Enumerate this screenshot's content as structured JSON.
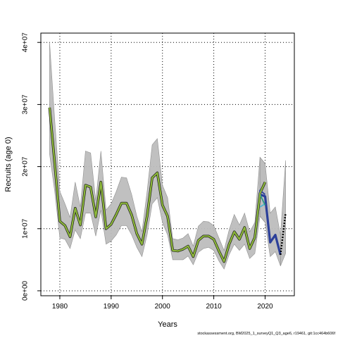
{
  "chart_data": {
    "type": "line",
    "title": "",
    "xlabel": "Years",
    "ylabel": "Recruits (age 0)",
    "xlim": [
      1976.3,
      2025.7
    ],
    "ylim": [
      -800000,
      41500000
    ],
    "xticks": [
      1980,
      1990,
      2000,
      2010,
      2020
    ],
    "xtick_labels": [
      "1980",
      "1990",
      "2000",
      "2010",
      "2020"
    ],
    "yticks": [
      0,
      10000000,
      20000000,
      30000000,
      40000000
    ],
    "ytick_labels": [
      "0e+00",
      "1e+07",
      "2e+07",
      "3e+07",
      "4e+07"
    ],
    "grid": true,
    "grid_style": "dotted",
    "colors": {
      "band": "#bdbdbd",
      "band_edge": "#8c8c8c",
      "line_outline": "#1a1a1a",
      "main_line": "#8db83a",
      "retro_blue": "#2b3f99",
      "retro_teal": "#2c9a86",
      "retro_cyan": "#49b7d3",
      "forecast": "#000000"
    },
    "x": [
      1978,
      1979,
      1980,
      1981,
      1982,
      1983,
      1984,
      1985,
      1986,
      1987,
      1988,
      1989,
      1990,
      1991,
      1992,
      1993,
      1994,
      1995,
      1996,
      1997,
      1998,
      1999,
      2000,
      2001,
      2002,
      2003,
      2004,
      2005,
      2006,
      2007,
      2008,
      2009,
      2010,
      2011,
      2012,
      2013,
      2014,
      2015,
      2016,
      2017,
      2018,
      2019,
      2020
    ],
    "band_upper": [
      40000000,
      27500000,
      16000000,
      14000000,
      11800000,
      17500000,
      13500000,
      22500000,
      22200000,
      14500000,
      22500000,
      13000000,
      14000000,
      16000000,
      18300000,
      18200000,
      15500000,
      12000000,
      9500000,
      16000000,
      23500000,
      24500000,
      17000000,
      15000000,
      8400000,
      8200000,
      8500000,
      9200000,
      7200000,
      10400000,
      11200000,
      11100000,
      10500000,
      8500000,
      6500000,
      9800000,
      12300000,
      10600000,
      12500000,
      9500000,
      11000000,
      21500000,
      20500000
    ],
    "band_lower": [
      22000000,
      16000000,
      8500000,
      8300000,
      6800000,
      9800000,
      8400000,
      12500000,
      12500000,
      8800000,
      13000000,
      7500000,
      8000000,
      9000000,
      10500000,
      10500000,
      9000000,
      7000000,
      5500000,
      9000000,
      14000000,
      15000000,
      11000000,
      9000000,
      5000000,
      5000000,
      5000000,
      5600000,
      4200000,
      6200000,
      6800000,
      7000000,
      6500000,
      4800000,
      3500000,
      5800000,
      7500000,
      6500000,
      7500000,
      5200000,
      6000000,
      12000000,
      11000000
    ],
    "series": [
      {
        "values": [
          29500000,
          20500000,
          11200000,
          10500000,
          8700000,
          13300000,
          10600000,
          17000000,
          16700000,
          11900000,
          17500000,
          10000000,
          10700000,
          12300000,
          14100000,
          14100000,
          12200000,
          9200000,
          7500000,
          12000000,
          18200000,
          19000000,
          13800000,
          12000000,
          6500000,
          6400000,
          6700000,
          7200000,
          5500000,
          8100000,
          8800000,
          8800000,
          8300000,
          6400000,
          4700000,
          7500000,
          9500000,
          8300000,
          10200000,
          6800000,
          8600000,
          15700000,
          17500000
        ]
      },
      {
        "values": [
          null,
          null,
          null,
          null,
          null,
          null,
          null,
          null,
          null,
          null,
          null,
          null,
          null,
          null,
          null,
          null,
          null,
          null,
          null,
          null,
          null,
          null,
          null,
          null,
          null,
          null,
          null,
          null,
          null,
          null,
          null,
          null,
          null,
          null,
          null,
          null,
          null,
          null,
          null,
          null,
          8400000,
          16200000,
          15500000
        ]
      },
      {
        "values": [
          null,
          null,
          null,
          null,
          null,
          null,
          null,
          null,
          null,
          null,
          null,
          null,
          null,
          null,
          null,
          null,
          null,
          null,
          null,
          null,
          null,
          null,
          null,
          null,
          null,
          null,
          null,
          null,
          null,
          null,
          null,
          null,
          null,
          null,
          null,
          null,
          null,
          null,
          null,
          null,
          8400000,
          15500000,
          13800000
        ]
      },
      {
        "values": [
          null,
          null,
          null,
          null,
          null,
          null,
          null,
          null,
          null,
          null,
          null,
          null,
          null,
          null,
          null,
          null,
          null,
          null,
          null,
          null,
          null,
          null,
          null,
          null,
          null,
          null,
          null,
          null,
          null,
          null,
          null,
          null,
          null,
          null,
          null,
          null,
          null,
          null,
          null,
          null,
          null,
          13500000,
          14000000
        ]
      }
    ],
    "retro_tail": {
      "x": [
        2019,
        2020,
        2021,
        2022,
        2023
      ],
      "upper": [
        21500000,
        20500000,
        12500000,
        13500000,
        9000000
      ],
      "lower": [
        12000000,
        11000000,
        5500000,
        6300000,
        4000000
      ],
      "values": [
        15500000,
        15200000,
        7800000,
        9000000,
        5800000
      ]
    },
    "forecast": {
      "x": [
        2023,
        2024
      ],
      "upper": [
        9000000,
        21000000
      ],
      "lower": [
        4000000,
        6000000
      ],
      "values": [
        5800000,
        12500000
      ]
    }
  },
  "footer_text": "stockassessment.org, BM2025_1_surveyQ1_Q3_age6, r19461, git:1cc464b606f"
}
